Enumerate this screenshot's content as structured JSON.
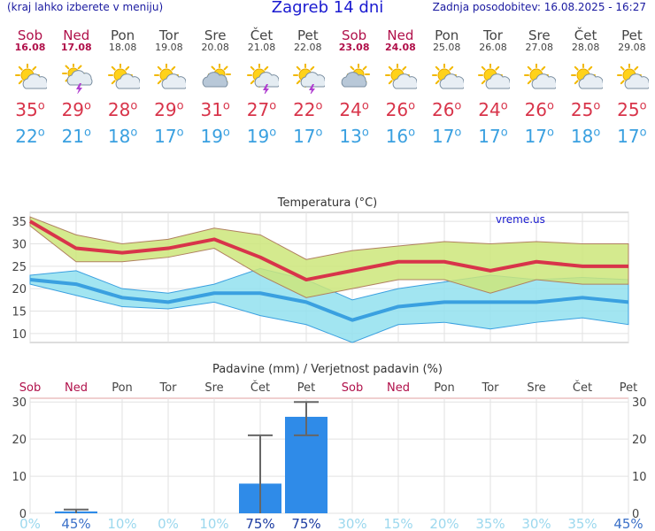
{
  "header": {
    "left_note": "(kraj lahko izberete v meniju)",
    "title": "Zagreb 14 dni",
    "updated": "Zadnja posodobitev: 16.08.2025 - 16:27"
  },
  "days": [
    {
      "name": "Sob",
      "date": "16.08",
      "weekend": true,
      "icon": "sun-cloud-icon",
      "tmax": "35",
      "tmin": "22"
    },
    {
      "name": "Ned",
      "date": "17.08",
      "weekend": true,
      "icon": "thunderstorm-icon",
      "tmax": "29",
      "tmin": "21"
    },
    {
      "name": "Pon",
      "date": "18.08",
      "weekend": false,
      "icon": "sun-cloud-icon",
      "tmax": "28",
      "tmin": "18"
    },
    {
      "name": "Tor",
      "date": "19.08",
      "weekend": false,
      "icon": "sun-cloud-icon",
      "tmax": "29",
      "tmin": "17"
    },
    {
      "name": "Sre",
      "date": "20.08",
      "weekend": false,
      "icon": "cloudy-icon",
      "tmax": "31",
      "tmin": "19"
    },
    {
      "name": "Čet",
      "date": "21.08",
      "weekend": false,
      "icon": "sun-thunder-icon",
      "tmax": "27",
      "tmin": "19"
    },
    {
      "name": "Pet",
      "date": "22.08",
      "weekend": false,
      "icon": "sun-thunder-icon",
      "tmax": "22",
      "tmin": "17"
    },
    {
      "name": "Sob",
      "date": "23.08",
      "weekend": true,
      "icon": "cloudy-icon",
      "tmax": "24",
      "tmin": "13"
    },
    {
      "name": "Ned",
      "date": "24.08",
      "weekend": true,
      "icon": "sun-cloud-icon",
      "tmax": "26",
      "tmin": "16"
    },
    {
      "name": "Pon",
      "date": "25.08",
      "weekend": false,
      "icon": "sun-cloud-icon",
      "tmax": "26",
      "tmin": "17"
    },
    {
      "name": "Tor",
      "date": "26.08",
      "weekend": false,
      "icon": "sun-cloud-icon",
      "tmax": "24",
      "tmin": "17"
    },
    {
      "name": "Sre",
      "date": "27.08",
      "weekend": false,
      "icon": "sun-cloud-icon",
      "tmax": "26",
      "tmin": "17"
    },
    {
      "name": "Čet",
      "date": "28.08",
      "weekend": false,
      "icon": "sun-cloud-icon",
      "tmax": "25",
      "tmin": "18"
    },
    {
      "name": "Pet",
      "date": "29.08",
      "weekend": false,
      "icon": "sun-cloud-icon",
      "tmax": "25",
      "tmin": "17"
    }
  ],
  "chart_data": [
    {
      "type": "line",
      "title": "Temperatura (°C)",
      "watermark": "vreme.us",
      "categories": [
        "16.08",
        "17.08",
        "18.08",
        "19.08",
        "20.08",
        "21.08",
        "22.08",
        "23.08",
        "24.08",
        "25.08",
        "26.08",
        "27.08",
        "28.08",
        "29.08"
      ],
      "ylim": [
        8,
        37
      ],
      "yticks": [
        10,
        15,
        20,
        25,
        30,
        35
      ],
      "grid": true,
      "series": [
        {
          "values": [
            35,
            29,
            28,
            29,
            31,
            27,
            22,
            24,
            26,
            26,
            24,
            26,
            25,
            25
          ],
          "color": "#d8344a"
        },
        {
          "values": [
            22,
            21,
            18,
            17,
            19,
            19,
            17,
            13,
            16,
            17,
            17,
            17,
            18,
            17
          ],
          "color": "#3aa0e0"
        }
      ],
      "max_band": {
        "upper": [
          36,
          32,
          30,
          31,
          33.5,
          32,
          26.5,
          28.5,
          29.5,
          30.5,
          30,
          30.5,
          30,
          30
        ],
        "lower": [
          34,
          26,
          26,
          27,
          29,
          23,
          18,
          20,
          22,
          22,
          19,
          22,
          21,
          21
        ],
        "color": "#cde67a"
      },
      "min_band": {
        "upper": [
          23,
          24,
          20,
          19,
          21,
          24.5,
          22,
          17.5,
          20,
          21.5,
          23,
          22,
          22.5,
          22
        ],
        "lower": [
          21,
          18.5,
          16,
          15.5,
          17,
          14,
          12,
          8,
          12,
          12.5,
          11,
          12.5,
          13.5,
          12
        ],
        "color": "#92e0ee"
      }
    },
    {
      "type": "bar",
      "title": "Padavine (mm) / Verjetnost padavin (%)",
      "categories": [
        "Sob",
        "Ned",
        "Pon",
        "Tor",
        "Sre",
        "Čet",
        "Pet",
        "Sob",
        "Ned",
        "Pon",
        "Tor",
        "Sre",
        "Čet",
        "Pet"
      ],
      "weekend": [
        true,
        true,
        false,
        false,
        false,
        false,
        false,
        true,
        true,
        false,
        false,
        false,
        false,
        false
      ],
      "values": [
        0,
        0.5,
        0,
        0,
        0,
        8,
        26,
        0,
        0,
        0,
        0,
        0,
        0,
        0
      ],
      "error_high": [
        0,
        1,
        0,
        0,
        0,
        21,
        30,
        0,
        0,
        0,
        0,
        0,
        0,
        0
      ],
      "error_low": [
        0,
        0,
        0,
        0,
        0,
        0,
        21,
        0,
        0,
        0,
        0,
        0,
        0,
        0
      ],
      "probability": [
        "0%",
        "45%",
        "10%",
        "0%",
        "10%",
        "75%",
        "75%",
        "30%",
        "15%",
        "20%",
        "35%",
        "30%",
        "35%",
        "45%"
      ],
      "probability_level": [
        0,
        45,
        10,
        0,
        10,
        75,
        75,
        30,
        15,
        20,
        35,
        30,
        35,
        45
      ],
      "ylim": [
        0,
        31
      ],
      "yticks": [
        0,
        10,
        20,
        30
      ],
      "bar_color": "#2f8be8"
    }
  ]
}
